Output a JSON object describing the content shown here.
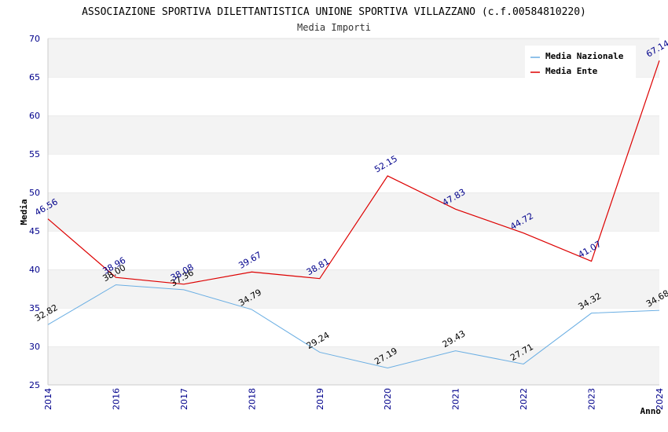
{
  "chart_data": {
    "type": "line",
    "title": "ASSOCIAZIONE SPORTIVA DILETTANTISTICA UNIONE SPORTIVA VILLAZZANO (c.f.00584810220)",
    "subtitle": "Media Importi",
    "xlabel": "Anno",
    "ylabel": "Media",
    "ylim": [
      25,
      70
    ],
    "yticks": [
      25,
      30,
      35,
      40,
      45,
      50,
      55,
      60,
      65,
      70
    ],
    "grid": "horizontal alternating bands",
    "legend_position": "top-right",
    "x": [
      "2014",
      "2016",
      "2017",
      "2018",
      "2019",
      "2020",
      "2021",
      "2022",
      "2023",
      "2024"
    ],
    "series": [
      {
        "name": "Media Nazionale",
        "color": "#6aaee3",
        "label_color": "#000000",
        "values": [
          32.82,
          38.0,
          37.36,
          34.79,
          29.24,
          27.19,
          29.43,
          27.71,
          34.32,
          34.68
        ],
        "labels": [
          "32.82",
          "38.00",
          "37.36",
          "34.79",
          "29.24",
          "27.19",
          "29.43",
          "27.71",
          "34.32",
          "34.68"
        ]
      },
      {
        "name": "Media Ente",
        "color": "#dd0000",
        "label_color": "#00008b",
        "values": [
          46.56,
          38.96,
          38.08,
          39.67,
          38.81,
          52.15,
          47.83,
          44.72,
          41.07,
          67.14
        ],
        "labels": [
          "46.56",
          "38.96",
          "38.08",
          "39.67",
          "38.81",
          "52.15",
          "47.83",
          "44.72",
          "41.07",
          "67.14"
        ]
      }
    ]
  }
}
